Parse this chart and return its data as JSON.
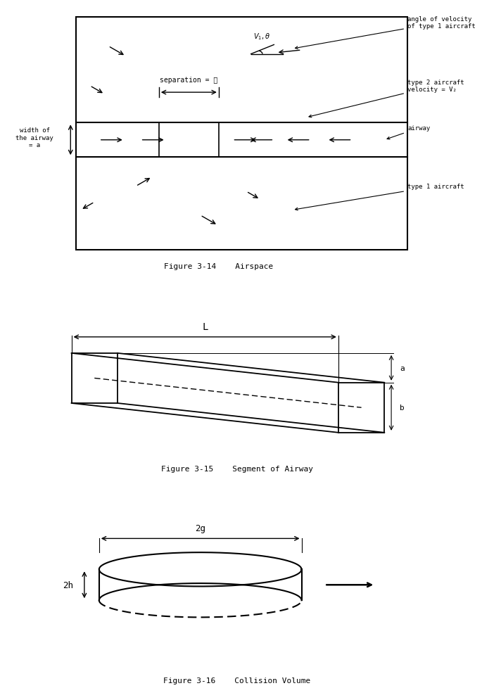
{
  "fig_width": 6.54,
  "fig_height": 9.76,
  "bg_color": "#ffffff",
  "line_color": "#000000",
  "fig14_caption": "Figure 3-14    Airspace",
  "fig15_caption": "Figure 3-15    Segment of Airway",
  "fig16_caption": "Figure 3-16    Collision Volume",
  "annotation_angle_velocity": "angle of velocity\nof type 1 aircraft",
  "annotation_type2": "type 2 aircraft\nvelocity = V₂",
  "annotation_airway": "airway",
  "annotation_type1": "type 1 aircraft",
  "annotation_width": "width of\nthe airway\n= a",
  "annotation_separation": "separation = ℓ",
  "label_L": "L",
  "label_a": "a",
  "label_b": "b",
  "label_2g": "2g",
  "label_2h": "2h"
}
